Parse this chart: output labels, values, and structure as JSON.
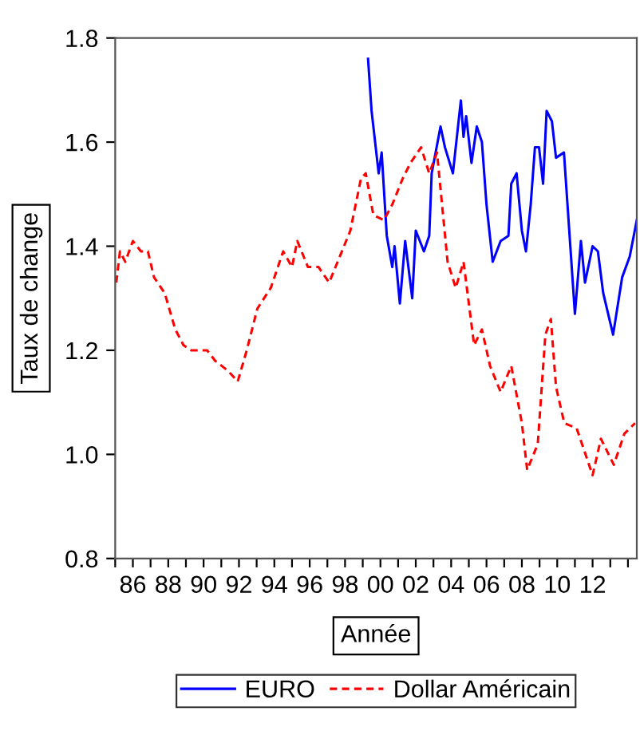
{
  "chart_data": {
    "type": "line",
    "xlabel": "Année",
    "ylabel": "Taux de change",
    "xlim": [
      1985,
      2014.5
    ],
    "ylim": [
      0.8,
      1.8
    ],
    "yticks": [
      0.8,
      {
        "value": 1,
        "label": "1.0"
      },
      1.2,
      1.4,
      1.6,
      1.8
    ],
    "xticks": [
      {
        "value": 1985,
        "label": null
      },
      {
        "value": 1986,
        "label": "86"
      },
      {
        "value": 1987,
        "label": null
      },
      {
        "value": 1988,
        "label": "88"
      },
      {
        "value": 1989,
        "label": null
      },
      {
        "value": 1990,
        "label": "90"
      },
      {
        "value": 1991,
        "label": null
      },
      {
        "value": 1992,
        "label": "92"
      },
      {
        "value": 1993,
        "label": null
      },
      {
        "value": 1994,
        "label": "94"
      },
      {
        "value": 1995,
        "label": null
      },
      {
        "value": 1996,
        "label": "96"
      },
      {
        "value": 1997,
        "label": null
      },
      {
        "value": 1998,
        "label": "98"
      },
      {
        "value": 1999,
        "label": null
      },
      {
        "value": 2000,
        "label": "00"
      },
      {
        "value": 2001,
        "label": null
      },
      {
        "value": 2002,
        "label": "02"
      },
      {
        "value": 2003,
        "label": null
      },
      {
        "value": 2004,
        "label": "04"
      },
      {
        "value": 2005,
        "label": null
      },
      {
        "value": 2006,
        "label": "06"
      },
      {
        "value": 2007,
        "label": null
      },
      {
        "value": 2008,
        "label": "08"
      },
      {
        "value": 2009,
        "label": null
      },
      {
        "value": 2010,
        "label": "10"
      },
      {
        "value": 2011,
        "label": null
      },
      {
        "value": 2012,
        "label": "12"
      },
      {
        "value": 2013,
        "label": null
      },
      {
        "value": 2014,
        "label": null
      }
    ],
    "grid": false,
    "legend": "bottom",
    "marker": "none",
    "series": [
      {
        "name": "EURO",
        "color": "#0000ff",
        "line_style": "solid",
        "x": [
          1999.3,
          1999.5,
          1999.9,
          2000.07,
          2000.36,
          2000.67,
          2000.8,
          2001.1,
          2001.4,
          2001.8,
          2002.0,
          2002.46,
          2002.76,
          2002.9,
          2003.4,
          2003.65,
          2004.1,
          2004.55,
          2004.7,
          2004.85,
          2005.15,
          2005.45,
          2005.74,
          2006.0,
          2006.35,
          2006.8,
          2007.24,
          2007.4,
          2007.7,
          2008.0,
          2008.23,
          2008.5,
          2008.74,
          2008.97,
          2009.2,
          2009.4,
          2009.7,
          2009.93,
          2010.38,
          2011.0,
          2011.34,
          2011.57,
          2012.0,
          2012.3,
          2012.6,
          2013.16,
          2013.67,
          2014.1,
          2014.5
        ],
        "values": [
          1.76,
          1.66,
          1.54,
          1.58,
          1.42,
          1.36,
          1.4,
          1.29,
          1.41,
          1.3,
          1.43,
          1.39,
          1.42,
          1.54,
          1.63,
          1.59,
          1.54,
          1.68,
          1.61,
          1.65,
          1.56,
          1.63,
          1.6,
          1.48,
          1.37,
          1.41,
          1.42,
          1.52,
          1.54,
          1.43,
          1.39,
          1.48,
          1.59,
          1.59,
          1.52,
          1.66,
          1.64,
          1.57,
          1.58,
          1.27,
          1.41,
          1.33,
          1.4,
          1.39,
          1.31,
          1.23,
          1.34,
          1.38,
          1.45
        ]
      },
      {
        "name": "Dollar Américain",
        "color": "#ff0000",
        "line_style": "dashed",
        "x": [
          1985.06,
          1985.27,
          1985.57,
          1986.0,
          1986.46,
          1986.85,
          1987.2,
          1987.8,
          1988.4,
          1988.86,
          1989.3,
          1990.2,
          1990.65,
          1991.4,
          1991.93,
          1992.44,
          1993.04,
          1993.8,
          1994.5,
          1995.0,
          1995.3,
          1995.9,
          1996.5,
          1997.1,
          1997.7,
          1998.3,
          1998.9,
          1999.17,
          1999.6,
          2000.2,
          2000.67,
          2001.26,
          2001.7,
          2002.3,
          2002.76,
          2003.2,
          2003.8,
          2004.26,
          2004.7,
          2005.3,
          2005.74,
          2006.2,
          2006.8,
          2007.4,
          2008.0,
          2008.3,
          2008.9,
          2009.33,
          2009.64,
          2009.93,
          2010.4,
          2011.1,
          2012.0,
          2012.47,
          2013.2,
          2013.8,
          2014.4
        ],
        "values": [
          1.33,
          1.39,
          1.37,
          1.41,
          1.39,
          1.39,
          1.34,
          1.31,
          1.24,
          1.21,
          1.2,
          1.2,
          1.18,
          1.16,
          1.14,
          1.2,
          1.28,
          1.32,
          1.39,
          1.36,
          1.41,
          1.36,
          1.36,
          1.33,
          1.38,
          1.43,
          1.53,
          1.54,
          1.46,
          1.45,
          1.48,
          1.53,
          1.56,
          1.59,
          1.54,
          1.58,
          1.37,
          1.32,
          1.37,
          1.21,
          1.24,
          1.17,
          1.12,
          1.17,
          1.06,
          0.97,
          1.02,
          1.23,
          1.26,
          1.13,
          1.06,
          1.05,
          0.96,
          1.03,
          0.98,
          1.04,
          1.06
        ]
      }
    ]
  }
}
